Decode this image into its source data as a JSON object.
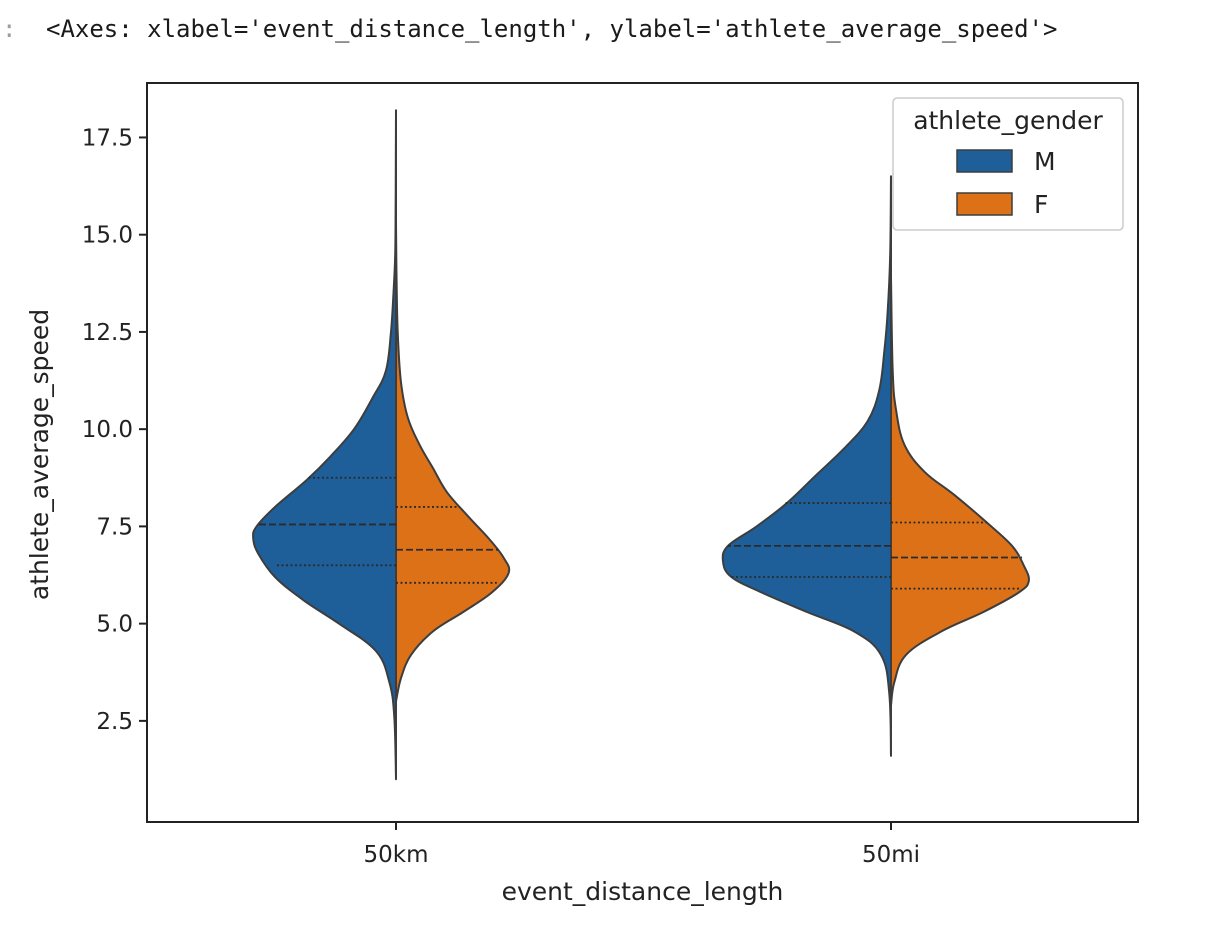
{
  "cell": {
    "prompt": ":",
    "output_text": "<Axes: xlabel='event_distance_length', ylabel='athlete_average_speed'>"
  },
  "chart_data": {
    "type": "violin",
    "split": true,
    "inner": "quartile",
    "xlabel": "event_distance_length",
    "ylabel": "athlete_average_speed",
    "categories": [
      "50km",
      "50mi"
    ],
    "yticks": [
      2.5,
      5.0,
      7.5,
      10.0,
      12.5,
      15.0,
      17.5
    ],
    "ytick_labels": [
      "2.5",
      "5.0",
      "7.5",
      "10.0",
      "12.5",
      "15.0",
      "17.5"
    ],
    "ylim": [
      -0.1,
      18.9
    ],
    "grid": false,
    "legend": {
      "title": "athlete_gender",
      "placement": "upper right",
      "entries": [
        {
          "label": "M",
          "color": "#1f5f99"
        },
        {
          "label": "F",
          "color": "#dd7118"
        }
      ]
    },
    "series": [
      {
        "name": "M",
        "color": "#1f5f99",
        "side": "left",
        "violins": [
          {
            "category": "50km",
            "min": 1.0,
            "max": 18.2,
            "quartiles": [
              6.5,
              7.55,
              8.75
            ],
            "quartile_half_widths": [
              0.72,
              0.82,
              0.52
            ],
            "profile": [
              [
                1.0,
                0.0
              ],
              [
                2.6,
                0.01
              ],
              [
                3.5,
                0.04
              ],
              [
                4.3,
                0.12
              ],
              [
                5.0,
                0.34
              ],
              [
                5.6,
                0.55
              ],
              [
                6.2,
                0.72
              ],
              [
                6.8,
                0.82
              ],
              [
                7.2,
                0.85
              ],
              [
                7.5,
                0.83
              ],
              [
                8.0,
                0.72
              ],
              [
                8.7,
                0.53
              ],
              [
                9.3,
                0.39
              ],
              [
                10.0,
                0.25
              ],
              [
                10.8,
                0.14
              ],
              [
                11.5,
                0.06
              ],
              [
                12.5,
                0.03
              ],
              [
                13.5,
                0.015
              ],
              [
                14.5,
                0.005
              ],
              [
                16.0,
                0.002
              ],
              [
                18.2,
                0.0
              ]
            ]
          },
          {
            "category": "50mi",
            "min": 1.6,
            "max": 16.5,
            "quartiles": [
              6.2,
              7.0,
              8.1
            ],
            "quartile_half_widths": [
              0.95,
              0.97,
              0.63
            ],
            "profile": [
              [
                1.6,
                0.0
              ],
              [
                3.2,
                0.01
              ],
              [
                4.2,
                0.06
              ],
              [
                4.8,
                0.22
              ],
              [
                5.3,
                0.5
              ],
              [
                5.8,
                0.77
              ],
              [
                6.2,
                0.95
              ],
              [
                6.6,
                1.0
              ],
              [
                7.0,
                0.97
              ],
              [
                7.5,
                0.8
              ],
              [
                8.1,
                0.62
              ],
              [
                8.8,
                0.45
              ],
              [
                9.5,
                0.28
              ],
              [
                10.2,
                0.14
              ],
              [
                11.0,
                0.07
              ],
              [
                12.0,
                0.04
              ],
              [
                13.0,
                0.02
              ],
              [
                14.5,
                0.005
              ],
              [
                16.5,
                0.0
              ]
            ]
          }
        ]
      },
      {
        "name": "F",
        "color": "#dd7118",
        "side": "right",
        "violins": [
          {
            "category": "50km",
            "min": 3.0,
            "max": 15.3,
            "quartiles": [
              6.05,
              6.9,
              8.0
            ],
            "quartile_half_widths": [
              0.6,
              0.61,
              0.38
            ],
            "profile": [
              [
                3.0,
                0.0
              ],
              [
                3.6,
                0.03
              ],
              [
                4.2,
                0.09
              ],
              [
                4.8,
                0.22
              ],
              [
                5.3,
                0.4
              ],
              [
                5.8,
                0.57
              ],
              [
                6.3,
                0.67
              ],
              [
                6.7,
                0.64
              ],
              [
                7.2,
                0.55
              ],
              [
                7.8,
                0.42
              ],
              [
                8.4,
                0.3
              ],
              [
                9.0,
                0.22
              ],
              [
                9.6,
                0.14
              ],
              [
                10.3,
                0.07
              ],
              [
                11.2,
                0.03
              ],
              [
                12.5,
                0.01
              ],
              [
                14.0,
                0.003
              ],
              [
                15.3,
                0.0
              ]
            ]
          },
          {
            "category": "50mi",
            "min": 2.9,
            "max": 13.9,
            "quartiles": [
              5.9,
              6.7,
              7.6
            ],
            "quartile_half_widths": [
              0.77,
              0.78,
              0.57
            ],
            "profile": [
              [
                2.9,
                0.0
              ],
              [
                3.5,
                0.02
              ],
              [
                4.2,
                0.09
              ],
              [
                4.8,
                0.3
              ],
              [
                5.3,
                0.55
              ],
              [
                5.8,
                0.76
              ],
              [
                6.1,
                0.82
              ],
              [
                6.5,
                0.79
              ],
              [
                7.0,
                0.72
              ],
              [
                7.6,
                0.57
              ],
              [
                8.3,
                0.38
              ],
              [
                8.9,
                0.2
              ],
              [
                9.6,
                0.08
              ],
              [
                10.5,
                0.03
              ],
              [
                11.5,
                0.01
              ],
              [
                13.9,
                0.0
              ]
            ]
          }
        ]
      }
    ]
  }
}
